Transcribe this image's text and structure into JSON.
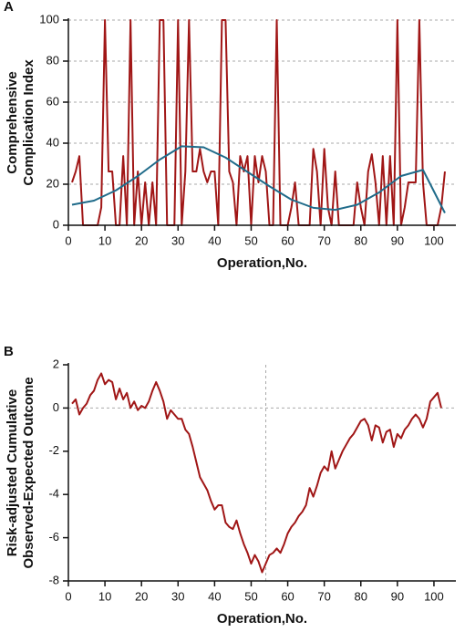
{
  "chart_data": [
    {
      "type": "line",
      "panel_label": "A",
      "xlabel": "Operation,No.",
      "ylabel": [
        "Comprehensive",
        "Complication Index"
      ],
      "x": [
        1,
        2,
        3,
        4,
        5,
        6,
        7,
        8,
        9,
        10,
        11,
        12,
        13,
        14,
        15,
        16,
        17,
        18,
        19,
        20,
        21,
        22,
        23,
        24,
        25,
        26,
        27,
        28,
        29,
        30,
        31,
        32,
        33,
        34,
        35,
        36,
        37,
        38,
        39,
        40,
        41,
        42,
        43,
        44,
        45,
        46,
        47,
        48,
        49,
        50,
        51,
        52,
        53,
        54,
        55,
        56,
        57,
        58,
        59,
        60,
        61,
        62,
        63,
        64,
        65,
        66,
        67,
        68,
        69,
        70,
        71,
        72,
        73,
        74,
        75,
        76,
        77,
        78,
        79,
        80,
        81,
        82,
        83,
        84,
        85,
        86,
        87,
        88,
        89,
        90,
        91,
        92,
        93,
        94,
        95,
        96,
        97,
        98,
        99,
        100,
        101,
        102,
        103
      ],
      "series": [
        {
          "color": "#a01616",
          "values": [
            20.9,
            26.2,
            33.7,
            0,
            0,
            0,
            0,
            0,
            8.7,
            100,
            26.2,
            26.2,
            0,
            0,
            33.7,
            0,
            100,
            0,
            26.2,
            0,
            20.9,
            0,
            20.9,
            0,
            100,
            100,
            0,
            0,
            0,
            100,
            0,
            26.2,
            100,
            26.2,
            26.2,
            37.2,
            26.2,
            20.9,
            26.2,
            26.2,
            0,
            100,
            100,
            26.2,
            20.9,
            0,
            33.7,
            26.2,
            33.7,
            0,
            33.7,
            20.9,
            33.7,
            26.2,
            0,
            0,
            100,
            0,
            0,
            0,
            8.7,
            20.9,
            0,
            0,
            0,
            0,
            37.2,
            26.2,
            0,
            37.2,
            8.7,
            0,
            26.2,
            0,
            0,
            0,
            0,
            0,
            20.9,
            8.7,
            0,
            26.2,
            34.6,
            20.9,
            0,
            33.7,
            0,
            33.7,
            0,
            100,
            0,
            8.7,
            20.9,
            20.9,
            20.9,
            100,
            20.9,
            0,
            0,
            0,
            0,
            8.7,
            26.2
          ]
        },
        {
          "color": "#1f6b8a",
          "x": [
            1,
            7,
            13,
            19,
            25,
            31,
            37,
            43,
            49,
            55,
            61,
            67,
            73,
            79,
            85,
            91,
            97,
            103
          ],
          "values": [
            10,
            12,
            17,
            24,
            32,
            38.5,
            38,
            33,
            26,
            19,
            12.5,
            8.5,
            7.5,
            10,
            16,
            24,
            27,
            6
          ]
        }
      ],
      "xlim": [
        0,
        106
      ],
      "ylim": [
        0,
        100
      ],
      "xticks": [
        0,
        10,
        20,
        30,
        40,
        50,
        60,
        70,
        80,
        90,
        100
      ],
      "yticks": [
        0,
        20,
        40,
        60,
        80,
        100
      ],
      "grid": true
    },
    {
      "type": "line",
      "panel_label": "B",
      "xlabel": "Operation,No.",
      "ylabel": [
        "Risk-adjusted Cumulative",
        "Observed-Expected Outcome"
      ],
      "x": [
        1,
        2,
        3,
        4,
        5,
        6,
        7,
        8,
        9,
        10,
        11,
        12,
        13,
        14,
        15,
        16,
        17,
        18,
        19,
        20,
        21,
        22,
        23,
        24,
        25,
        26,
        27,
        28,
        29,
        30,
        31,
        32,
        33,
        34,
        35,
        36,
        37,
        38,
        39,
        40,
        41,
        42,
        43,
        44,
        45,
        46,
        47,
        48,
        49,
        50,
        51,
        52,
        53,
        54,
        55,
        56,
        57,
        58,
        59,
        60,
        61,
        62,
        63,
        64,
        65,
        66,
        67,
        68,
        69,
        70,
        71,
        72,
        73,
        74,
        75,
        76,
        77,
        78,
        79,
        80,
        81,
        82,
        83,
        84,
        85,
        86,
        87,
        88,
        89,
        90,
        91,
        92,
        93,
        94,
        95,
        96,
        97,
        98,
        99,
        100,
        101,
        102
      ],
      "series": [
        {
          "color": "#a01616",
          "values": [
            0.2,
            0.4,
            -0.3,
            0,
            0.2,
            0.6,
            0.8,
            1.3,
            1.6,
            1.1,
            1.3,
            1.2,
            0.4,
            0.9,
            0.4,
            0.7,
            0,
            0.3,
            -0.1,
            0.1,
            0,
            0.3,
            0.8,
            1.2,
            0.8,
            0.3,
            -0.5,
            -0.1,
            -0.3,
            -0.5,
            -0.5,
            -1,
            -1.2,
            -1.8,
            -2.5,
            -3.2,
            -3.5,
            -3.8,
            -4.3,
            -4.7,
            -4.5,
            -4.5,
            -5.3,
            -5.5,
            -5.6,
            -5.2,
            -5.8,
            -6.3,
            -6.7,
            -7.2,
            -6.8,
            -7.1,
            -7.6,
            -7.2,
            -6.8,
            -6.7,
            -6.5,
            -6.7,
            -6.3,
            -5.8,
            -5.5,
            -5.3,
            -5,
            -4.8,
            -4.5,
            -3.7,
            -4.1,
            -3.6,
            -3,
            -2.7,
            -2.9,
            -2,
            -2.8,
            -2.4,
            -2,
            -1.7,
            -1.4,
            -1.2,
            -0.9,
            -0.6,
            -0.5,
            -0.8,
            -1.5,
            -0.8,
            -0.9,
            -1.6,
            -1.1,
            -1,
            -1.8,
            -1.2,
            -1.4,
            -1,
            -0.8,
            -0.5,
            -0.3,
            -0.5,
            -0.9,
            -0.5,
            0.3,
            0.5,
            0.7,
            0
          ]
        }
      ],
      "xlim": [
        0,
        106
      ],
      "ylim": [
        -8,
        2
      ],
      "xticks": [
        0,
        10,
        20,
        30,
        40,
        50,
        60,
        70,
        80,
        90,
        100
      ],
      "yticks": [
        -8,
        -6,
        -4,
        -2,
        0,
        2
      ],
      "grid": false,
      "vline": 54,
      "hline": 0
    }
  ]
}
